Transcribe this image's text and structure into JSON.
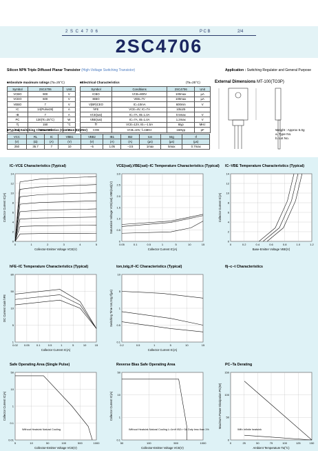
{
  "header": {
    "series_line": "2 S C 4 7 0 6",
    "pcb": "P C B",
    "page": "2/4",
    "title": "2SC4706"
  },
  "description": "Silicon NPN Triple Diffused Planar Transistor",
  "description_note": "(High-Voltage Switching Transistor)",
  "application_label": "Application :",
  "application": "Switching Regulator and General Purpose",
  "abs_max": {
    "title": "Absolute maximum ratings",
    "cond": "(Ta=25°C)",
    "header": [
      "Symbol",
      "2SC4706",
      "Unit"
    ],
    "rows": [
      [
        "VCBO",
        "900",
        "V"
      ],
      [
        "VCEO",
        "600",
        "V"
      ],
      [
        "VEBO",
        "7",
        "V"
      ],
      [
        "IC",
        "14(Pulse28)",
        "A"
      ],
      [
        "IB",
        "7",
        "A"
      ],
      [
        "PC",
        "130(Tc=25°C)",
        "W"
      ],
      [
        "Tj",
        "150",
        "°C"
      ],
      [
        "Tstg",
        "−55to+150",
        "°C"
      ]
    ]
  },
  "elec": {
    "title": "Electrical Characteristics",
    "cond": "(Ta=25°C)",
    "header": [
      "Symbol",
      "Conditions",
      "2SC4706",
      "Unit"
    ],
    "rows": [
      [
        "ICBO",
        "VCB=800V",
        "100max",
        "μA"
      ],
      [
        "IEBO",
        "VEB=7V",
        "100max",
        "μA"
      ],
      [
        "V(BR)CEO",
        "IC=10mA",
        "600min",
        "V"
      ],
      [
        "hFE",
        "VCE=4V, IC=7A",
        "10to25"
      ],
      [
        "VCE(sat)",
        "IC=7A, IB=1.4A",
        "0.5max",
        "V"
      ],
      [
        "VBE(sat)",
        "IC=7A, IB=1.4A",
        "1.2max",
        "V"
      ],
      [
        "fT",
        "VCE=12V, IE=−1.5A",
        "6typ",
        "MHz"
      ],
      [
        "COB",
        "VCB=10V, f=1MHz",
        "160typ",
        "pF"
      ]
    ]
  },
  "switching": {
    "title": "Typical Switching Characteristics (Common Emitter)",
    "header_symbols": [
      "VCC",
      "RL",
      "IC",
      "VBB1",
      "VBB2",
      "IB1",
      "IB2",
      "ton",
      "tstg",
      "tf"
    ],
    "header_units": [
      "(V)",
      "(Ω)",
      "(A)",
      "(V)",
      "(V)",
      "(A)",
      "(A)",
      "(μs)",
      "(μs)",
      "(μs)"
    ],
    "row": [
      "250",
      "35.7",
      "7",
      "10",
      "−5",
      "1.05",
      "−3.5",
      "1max",
      "5max",
      "0.7max"
    ]
  },
  "dimensions": {
    "title": "External Dimensions",
    "package": "MT-100(TO3P)",
    "notes": [
      "Weight : Approx 6.0g",
      "a. Type No.",
      "b. Lot No."
    ]
  },
  "charts": [
    {
      "title": "IC−VCE Characteristics (Typical)",
      "xlabel": "Collector-Emitter Voltage VCE(V)",
      "ylabel": "Collector Current IC(A)",
      "xticks": [
        "0",
        "1",
        "2",
        "3",
        "4",
        "5"
      ],
      "yticks": [
        "0",
        "2",
        "4",
        "6",
        "8",
        "10",
        "12",
        "14"
      ]
    },
    {
      "title": "VCE(sat),VBE(sat)−IC Temperature Characteristics (Typical)",
      "xlabel": "Collector Current IC(A)",
      "ylabel": "Saturation Voltage VCE(sat),VBE(sat)(V)",
      "xticks": [
        "0.05",
        "0.1",
        "0.5",
        "1",
        "5",
        "10",
        "15"
      ],
      "yticks": [
        "0",
        "0.5",
        "1.0",
        "1.5",
        "2.0",
        "2.5",
        "3.0"
      ]
    },
    {
      "title": "IC−VBE Temperature Characteristics (Typical)",
      "xlabel": "Base-Emitter Voltage VBE(V)",
      "ylabel": "Collector Current IC(A)",
      "xticks": [
        "0",
        "0.2",
        "0.4",
        "0.6",
        "0.8",
        "1.0",
        "1.2"
      ],
      "yticks": [
        "0",
        "2",
        "4",
        "6",
        "8",
        "10",
        "12",
        "14"
      ]
    },
    {
      "title": "hFE−IC Temperature Characteristics (Typical)",
      "xlabel": "Collector Current IC(A)",
      "ylabel": "DC Current Gain hFE",
      "xticks": [
        "0.02",
        "0.05",
        "0.1",
        "0.5",
        "1",
        "5",
        "10",
        "15"
      ],
      "yticks": [
        "1",
        "5",
        "10",
        "50",
        "80"
      ]
    },
    {
      "title": "ton,tstg,tf−IC Characteristics (Typical)",
      "xlabel": "Collector Current IC(A)",
      "ylabel": "Switching Time ton,tstg,tf(μs)",
      "xticks": [
        "0.2",
        "0.5",
        "1",
        "5",
        "10",
        "15"
      ],
      "yticks": [
        "0.1",
        "0.5",
        "1",
        "5",
        "10"
      ]
    },
    {
      "title": "θj−c−t Characteristics"
    },
    {
      "title": "Safe Operating Area (Single Pulse)",
      "xlabel": "Collector-Emitter Voltage VCE(V)",
      "ylabel": "Collector Current IC(A)",
      "xticks": [
        "5",
        "10",
        "50",
        "100",
        "500",
        "1000"
      ],
      "yticks": [
        "0.01",
        "0.1",
        "1",
        "10",
        "50"
      ],
      "note": "Without Heatsink Natural Cooling"
    },
    {
      "title": "Reverse Bias Safe Operating Area",
      "xlabel": "Collector-Emitter Voltage VCE(V)",
      "ylabel": "Collector Current IC(A)",
      "xticks": [
        "50",
        "100",
        "500",
        "1000"
      ],
      "yticks": [
        "0.1",
        "1",
        "10",
        "50"
      ],
      "note": "Without Heatsink Natural Cooling L=1mH IB2=−3A Duty less than 1%"
    },
    {
      "title": "PC−Ta Derating",
      "xlabel": "Ambient Temperature Ta(°C)",
      "ylabel": "Maximum Power Dissipation PC(W)",
      "xticks": [
        "0",
        "25",
        "50",
        "75",
        "100",
        "125",
        "150"
      ],
      "yticks": [
        "0",
        "50",
        "100",
        "150"
      ],
      "note": "With Infinite heatsink"
    }
  ]
}
